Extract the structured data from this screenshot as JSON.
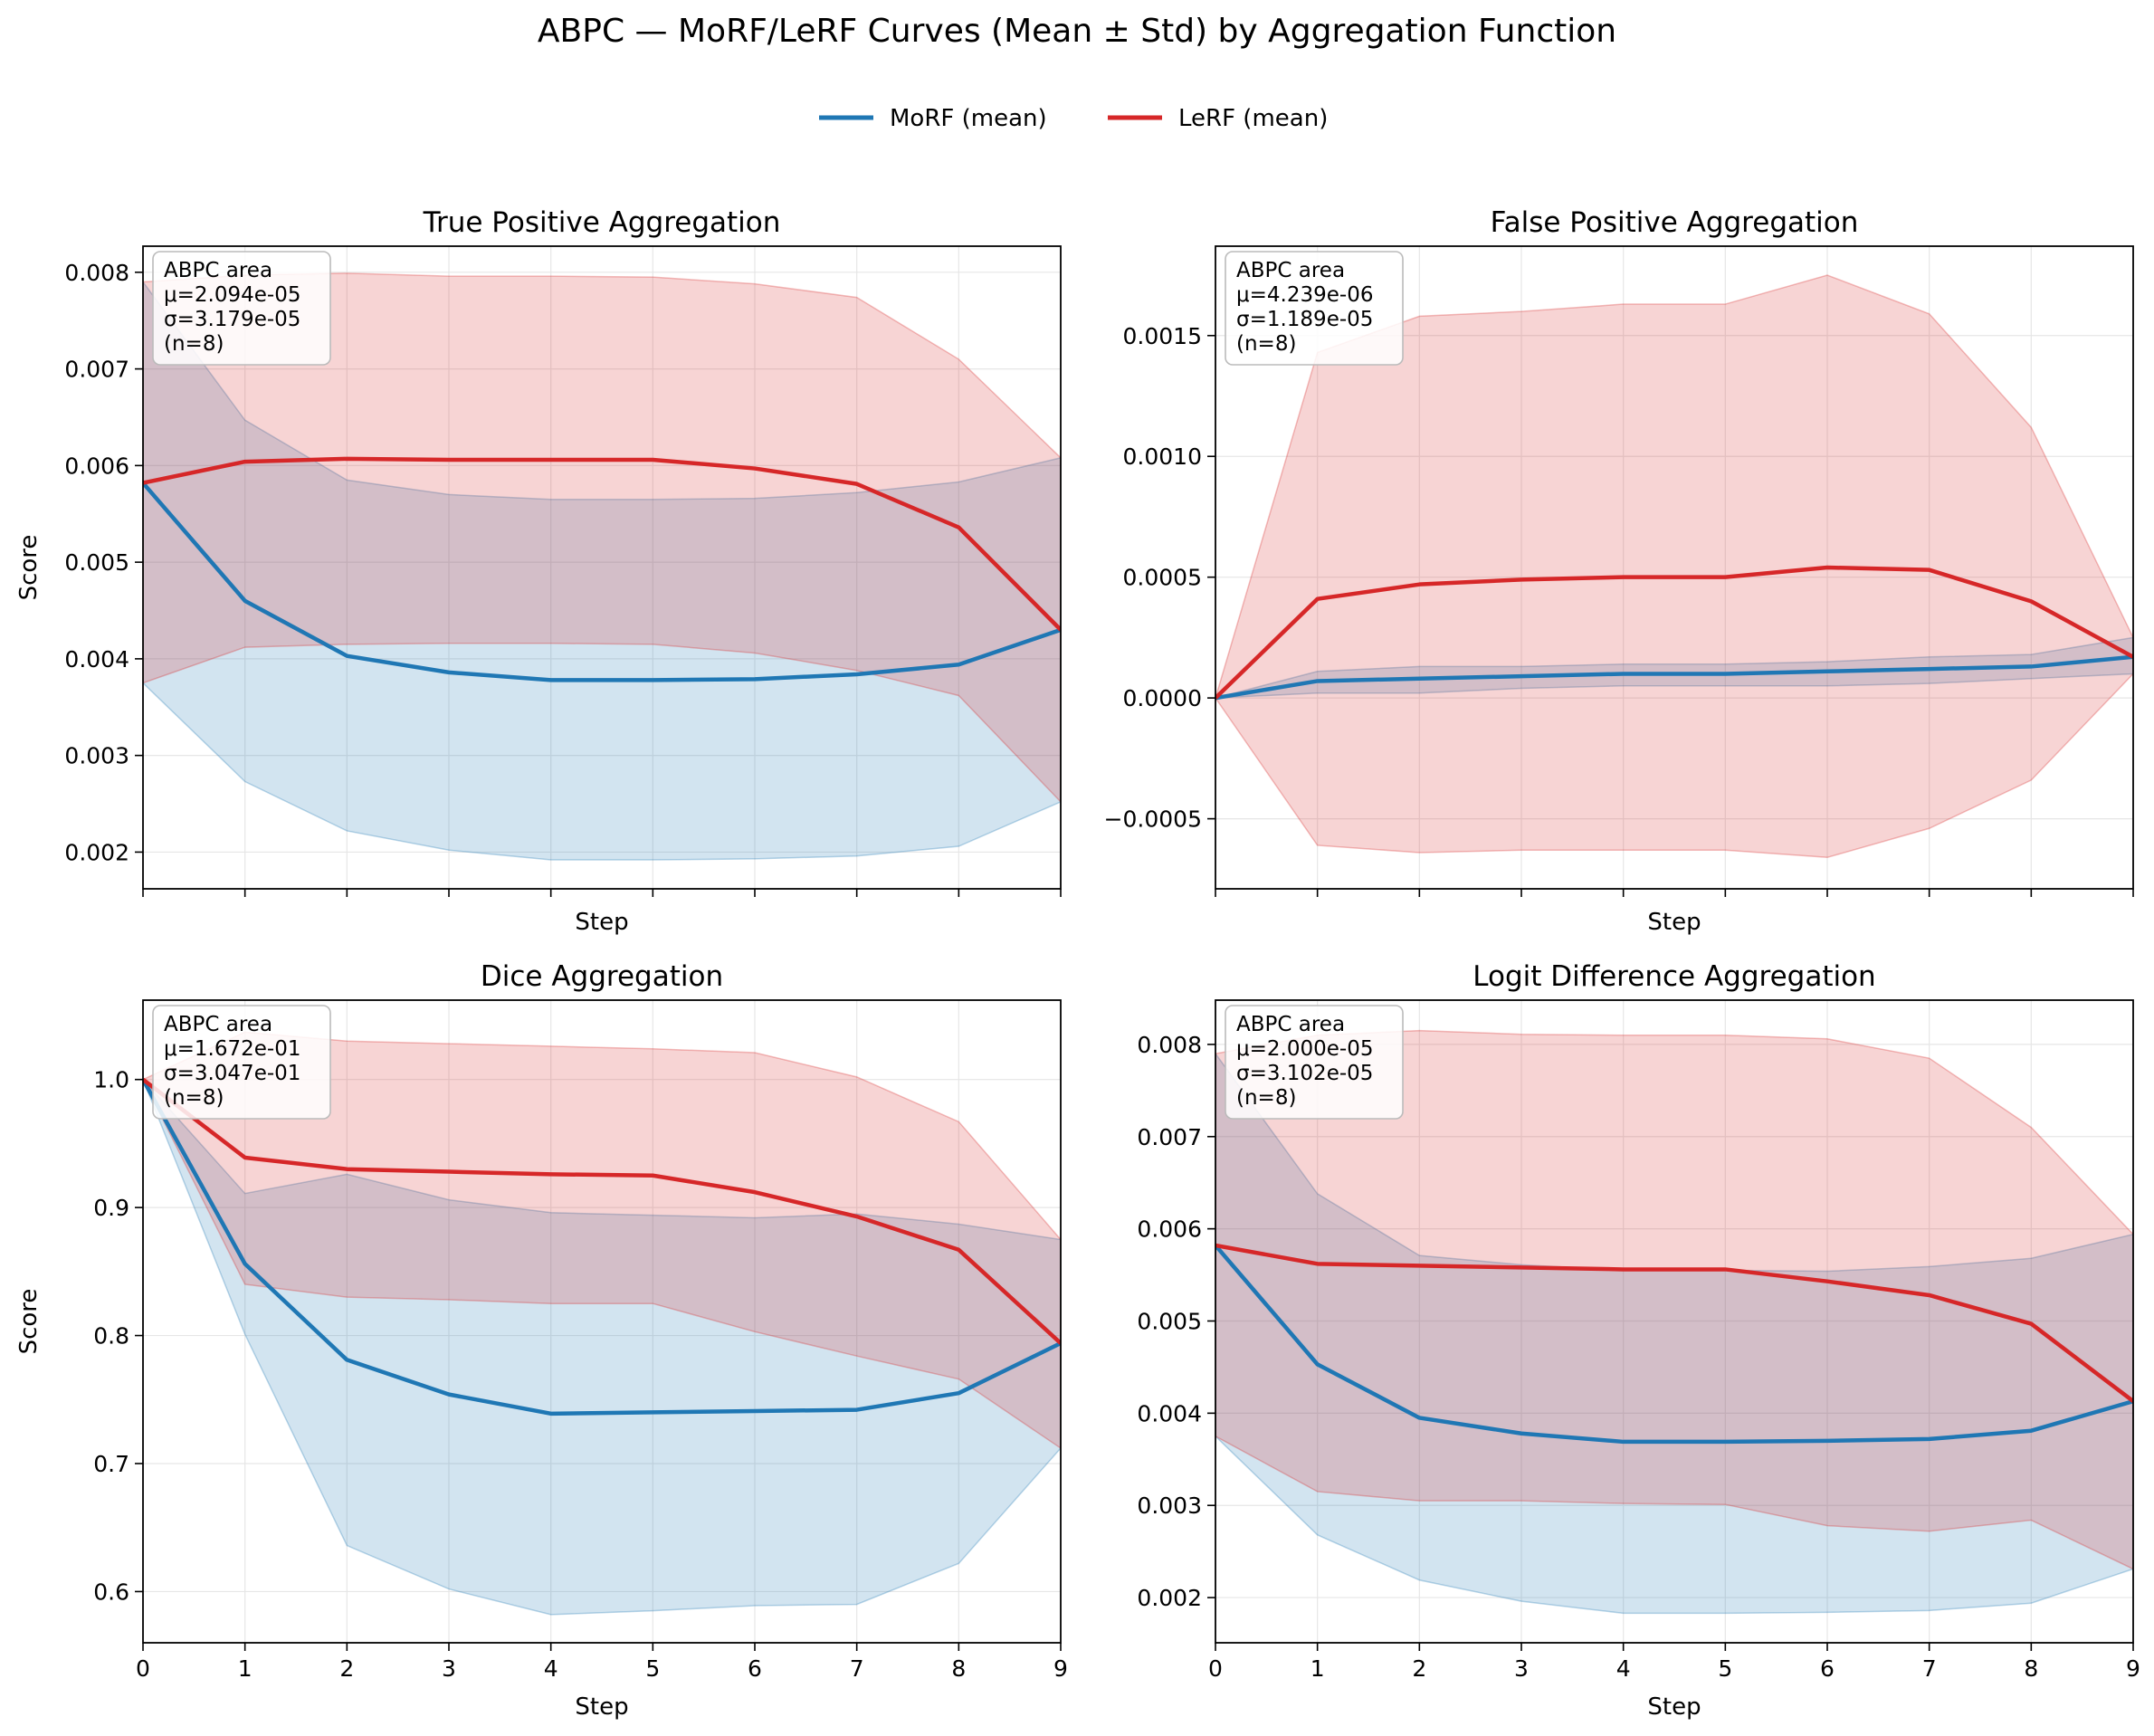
{
  "figure": {
    "title": "ABPC — MoRF/LeRF Curves (Mean ± Std) by Aggregation Function",
    "legend": [
      {
        "label": "MoRF (mean)",
        "color": "#1f77b4"
      },
      {
        "label": "LeRF (mean)",
        "color": "#d62728"
      }
    ]
  },
  "colors": {
    "morf": "#1f77b4",
    "lerf": "#d62728",
    "grid": "#e6e6e6"
  },
  "chart_data": [
    {
      "type": "line",
      "title": "True Positive Aggregation",
      "xlabel": "Step",
      "ylabel": "Score",
      "x": [
        0,
        1,
        2,
        3,
        4,
        5,
        6,
        7,
        8,
        9
      ],
      "xlim": [
        0,
        9
      ],
      "ylim": [
        0.00162,
        0.00827
      ],
      "yticks": [
        0.002,
        0.003,
        0.004,
        0.005,
        0.006,
        0.007,
        0.008
      ],
      "ytick_labels": [
        "0.002",
        "0.003",
        "0.004",
        "0.005",
        "0.006",
        "0.007",
        "0.008"
      ],
      "show_xtick_labels": false,
      "grid": true,
      "series": [
        {
          "name": "MoRF (mean)",
          "mean": [
            0.00582,
            0.0046,
            0.00403,
            0.00386,
            0.00378,
            0.00378,
            0.00379,
            0.00384,
            0.00394,
            0.0043
          ],
          "lower": [
            0.00375,
            0.00273,
            0.00222,
            0.00202,
            0.00192,
            0.00192,
            0.00193,
            0.00196,
            0.00206,
            0.00252
          ],
          "upper": [
            0.0079,
            0.00647,
            0.00585,
            0.0057,
            0.00565,
            0.00565,
            0.00566,
            0.00572,
            0.00583,
            0.00608
          ]
        },
        {
          "name": "LeRF (mean)",
          "mean": [
            0.00582,
            0.00604,
            0.00607,
            0.00606,
            0.00606,
            0.00606,
            0.00597,
            0.00581,
            0.00536,
            0.0043
          ],
          "lower": [
            0.00375,
            0.00412,
            0.00415,
            0.00416,
            0.00416,
            0.00415,
            0.00406,
            0.00388,
            0.00362,
            0.00252
          ],
          "upper": [
            0.0079,
            0.00797,
            0.00799,
            0.00796,
            0.00796,
            0.00795,
            0.00788,
            0.00774,
            0.0071,
            0.00608
          ]
        }
      ],
      "annotation": [
        "ABPC area",
        "μ=2.094e-05",
        "σ=3.179e-05",
        "(n=8)"
      ]
    },
    {
      "type": "line",
      "title": "False Positive Aggregation",
      "xlabel": "Step",
      "ylabel": "",
      "x": [
        0,
        1,
        2,
        3,
        4,
        5,
        6,
        7,
        8,
        9
      ],
      "xlim": [
        0,
        9
      ],
      "ylim": [
        -0.00079,
        0.00187
      ],
      "yticks": [
        -0.0005,
        0.0,
        0.0005,
        0.001,
        0.0015
      ],
      "ytick_labels": [
        "−0.0005",
        "0.0000",
        "0.0005",
        "0.0010",
        "0.0015"
      ],
      "show_xtick_labels": false,
      "grid": true,
      "series": [
        {
          "name": "MoRF (mean)",
          "mean": [
            0.0,
            7e-05,
            8e-05,
            9e-05,
            0.0001,
            0.0001,
            0.00011,
            0.00012,
            0.00013,
            0.00017
          ],
          "lower": [
            0.0,
            2e-05,
            2e-05,
            4e-05,
            5e-05,
            5e-05,
            5e-05,
            6e-05,
            8e-05,
            0.0001
          ],
          "upper": [
            0.0,
            0.00011,
            0.00013,
            0.00013,
            0.00014,
            0.00014,
            0.00015,
            0.00017,
            0.00018,
            0.00025
          ]
        },
        {
          "name": "LeRF (mean)",
          "mean": [
            0.0,
            0.00041,
            0.00047,
            0.00049,
            0.0005,
            0.0005,
            0.00054,
            0.00053,
            0.0004,
            0.00017
          ],
          "lower": [
            0.0,
            -0.00061,
            -0.00064,
            -0.00063,
            -0.00063,
            -0.00063,
            -0.00066,
            -0.00054,
            -0.00034,
            0.0001
          ],
          "upper": [
            0.0,
            0.00143,
            0.00158,
            0.0016,
            0.00163,
            0.00163,
            0.00175,
            0.00159,
            0.00112,
            0.00025
          ]
        }
      ],
      "annotation": [
        "ABPC area",
        "μ=4.239e-06",
        "σ=1.189e-05",
        "(n=8)"
      ]
    },
    {
      "type": "line",
      "title": "Dice Aggregation",
      "xlabel": "Step",
      "ylabel": "Score",
      "x": [
        0,
        1,
        2,
        3,
        4,
        5,
        6,
        7,
        8,
        9
      ],
      "xlim": [
        0,
        9
      ],
      "ylim": [
        0.56,
        1.062
      ],
      "yticks": [
        0.6,
        0.7,
        0.8,
        0.9,
        1.0
      ],
      "ytick_labels": [
        "0.6",
        "0.7",
        "0.8",
        "0.9",
        "1.0"
      ],
      "xtick_labels": [
        "0",
        "1",
        "2",
        "3",
        "4",
        "5",
        "6",
        "7",
        "8",
        "9"
      ],
      "show_xtick_labels": true,
      "grid": true,
      "series": [
        {
          "name": "MoRF (mean)",
          "mean": [
            1.0,
            0.856,
            0.781,
            0.754,
            0.739,
            0.74,
            0.741,
            0.742,
            0.755,
            0.794
          ],
          "lower": [
            1.0,
            0.801,
            0.636,
            0.602,
            0.582,
            0.585,
            0.589,
            0.59,
            0.622,
            0.712
          ],
          "upper": [
            1.0,
            0.911,
            0.926,
            0.906,
            0.896,
            0.894,
            0.892,
            0.895,
            0.887,
            0.875
          ]
        },
        {
          "name": "LeRF (mean)",
          "mean": [
            1.0,
            0.939,
            0.93,
            0.928,
            0.926,
            0.925,
            0.912,
            0.893,
            0.867,
            0.794
          ],
          "lower": [
            1.0,
            0.84,
            0.83,
            0.828,
            0.825,
            0.825,
            0.803,
            0.784,
            0.766,
            0.712
          ],
          "upper": [
            1.0,
            1.037,
            1.03,
            1.028,
            1.026,
            1.024,
            1.021,
            1.002,
            0.967,
            0.875
          ]
        }
      ],
      "annotation": [
        "ABPC area",
        "μ=1.672e-01",
        "σ=3.047e-01",
        "(n=8)"
      ]
    },
    {
      "type": "line",
      "title": "Logit Difference Aggregation",
      "xlabel": "Step",
      "ylabel": "",
      "x": [
        0,
        1,
        2,
        3,
        4,
        5,
        6,
        7,
        8,
        9
      ],
      "xlim": [
        0,
        9
      ],
      "ylim": [
        0.00151,
        0.00848
      ],
      "yticks": [
        0.002,
        0.003,
        0.004,
        0.005,
        0.006,
        0.007,
        0.008
      ],
      "ytick_labels": [
        "0.002",
        "0.003",
        "0.004",
        "0.005",
        "0.006",
        "0.007",
        "0.008"
      ],
      "xtick_labels": [
        "0",
        "1",
        "2",
        "3",
        "4",
        "5",
        "6",
        "7",
        "8",
        "9"
      ],
      "show_xtick_labels": true,
      "grid": true,
      "series": [
        {
          "name": "MoRF (mean)",
          "mean": [
            0.00582,
            0.00453,
            0.00395,
            0.00378,
            0.00369,
            0.00369,
            0.0037,
            0.00372,
            0.00381,
            0.00413
          ],
          "lower": [
            0.00375,
            0.00268,
            0.00219,
            0.00196,
            0.00183,
            0.00183,
            0.00184,
            0.00186,
            0.00194,
            0.00231
          ],
          "upper": [
            0.0079,
            0.00638,
            0.00571,
            0.00561,
            0.00555,
            0.00555,
            0.00554,
            0.00559,
            0.00568,
            0.00594
          ]
        },
        {
          "name": "LeRF (mean)",
          "mean": [
            0.00582,
            0.00562,
            0.0056,
            0.00558,
            0.00556,
            0.00556,
            0.00543,
            0.00528,
            0.00497,
            0.00413
          ],
          "lower": [
            0.00375,
            0.00315,
            0.00305,
            0.00305,
            0.00302,
            0.00301,
            0.00278,
            0.00272,
            0.00284,
            0.00231
          ],
          "upper": [
            0.0079,
            0.0081,
            0.00815,
            0.00811,
            0.0081,
            0.0081,
            0.00806,
            0.00785,
            0.0071,
            0.00594
          ]
        }
      ],
      "annotation": [
        "ABPC area",
        "μ=2.000e-05",
        "σ=3.102e-05",
        "(n=8)"
      ]
    }
  ]
}
